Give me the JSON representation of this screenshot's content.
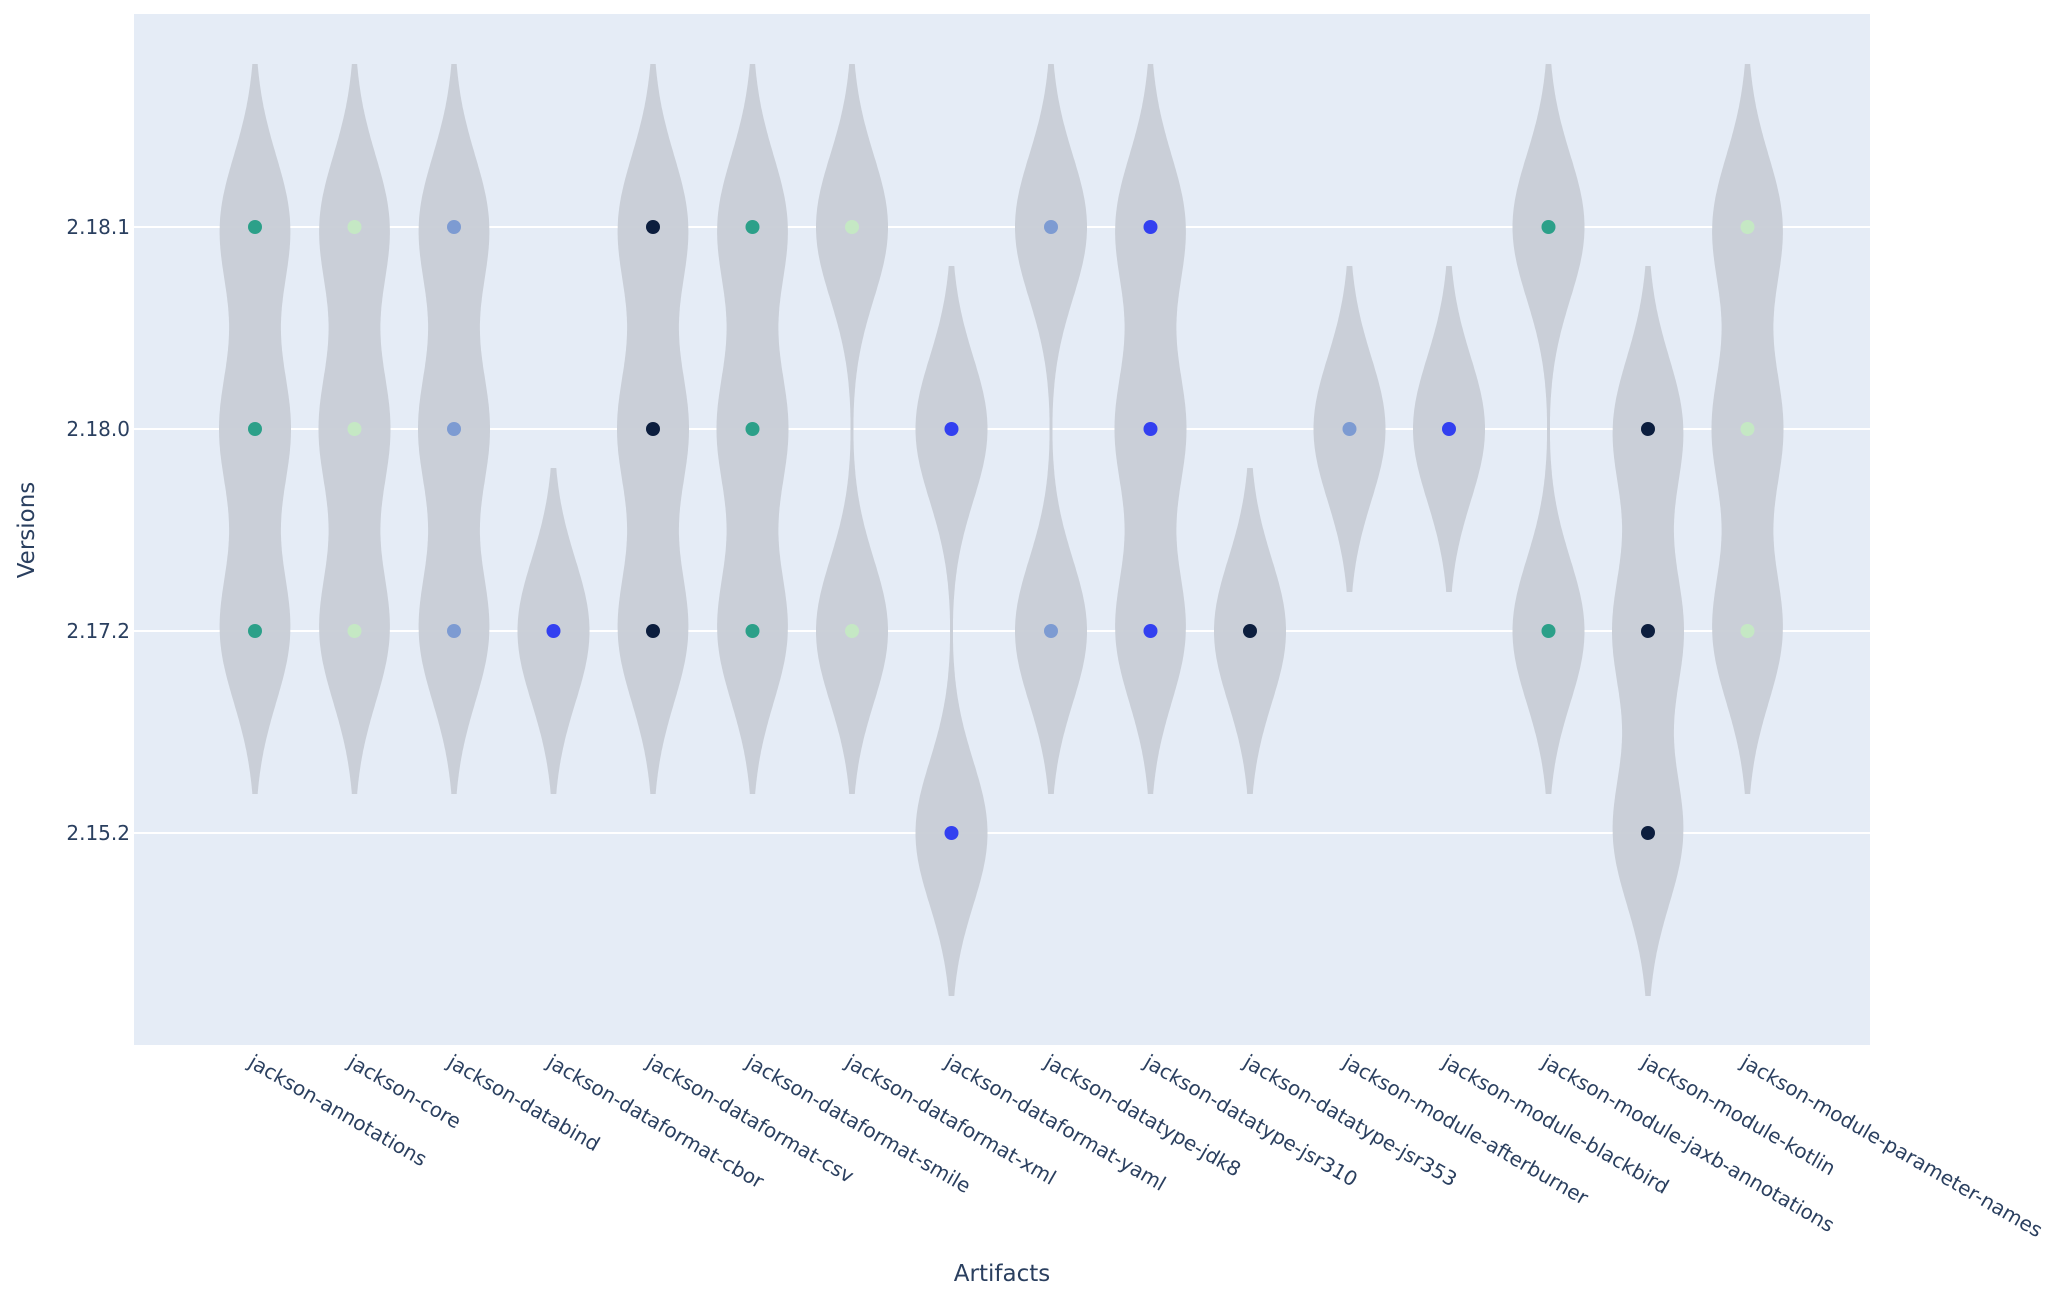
{
  "chart_data": {
    "type": "violin",
    "title": "",
    "xlabel": "Artifacts",
    "ylabel": "Versions",
    "x_axis_type": "category",
    "y_axis_type": "category",
    "y_categories": [
      "2.15.2",
      "2.17.2",
      "2.18.0",
      "2.18.1"
    ],
    "plot_background": "#e5ecf6",
    "grid": true,
    "grid_color": "#ffffff",
    "legend": "none",
    "violin_color": "#c8cdd6",
    "point_palette": [
      "#2ca089",
      "#c5e8c4",
      "#7d9bd2",
      "#3340f0",
      "#0c1e3e"
    ],
    "categories": [
      "jackson-annotations",
      "jackson-core",
      "jackson-databind",
      "jackson-dataformat-cbor",
      "jackson-dataformat-csv",
      "jackson-dataformat-smile",
      "jackson-dataformat-xml",
      "jackson-dataformat-yaml",
      "jackson-datatype-jdk8",
      "jackson-datatype-jsr310",
      "jackson-datatype-jsr353",
      "jackson-module-afterburner",
      "jackson-module-blackbird",
      "jackson-module-jaxb-annotations",
      "jackson-module-kotlin",
      "jackson-module-parameter-names"
    ],
    "series": [
      {
        "artifact": "jackson-annotations",
        "versions": [
          "2.17.2",
          "2.18.0",
          "2.18.1"
        ],
        "color": "#2ca089"
      },
      {
        "artifact": "jackson-core",
        "versions": [
          "2.17.2",
          "2.18.0",
          "2.18.1"
        ],
        "color": "#c5e8c4"
      },
      {
        "artifact": "jackson-databind",
        "versions": [
          "2.17.2",
          "2.18.0",
          "2.18.1"
        ],
        "color": "#7d9bd2"
      },
      {
        "artifact": "jackson-dataformat-cbor",
        "versions": [
          "2.17.2"
        ],
        "color": "#3340f0"
      },
      {
        "artifact": "jackson-dataformat-csv",
        "versions": [
          "2.17.2",
          "2.18.0",
          "2.18.1"
        ],
        "color": "#0c1e3e"
      },
      {
        "artifact": "jackson-dataformat-smile",
        "versions": [
          "2.17.2",
          "2.18.0",
          "2.18.1"
        ],
        "color": "#2ca089"
      },
      {
        "artifact": "jackson-dataformat-xml",
        "versions": [
          "2.17.2",
          "2.18.1"
        ],
        "color": "#c5e8c4"
      },
      {
        "artifact": "jackson-dataformat-yaml",
        "versions": [
          "2.15.2",
          "2.18.0"
        ],
        "color": "#3340f0"
      },
      {
        "artifact": "jackson-datatype-jdk8",
        "versions": [
          "2.17.2",
          "2.18.1"
        ],
        "color": "#7d9bd2"
      },
      {
        "artifact": "jackson-datatype-jsr310",
        "versions": [
          "2.17.2",
          "2.18.0",
          "2.18.1"
        ],
        "color": "#3340f0"
      },
      {
        "artifact": "jackson-datatype-jsr353",
        "versions": [
          "2.17.2"
        ],
        "color": "#0c1e3e"
      },
      {
        "artifact": "jackson-module-afterburner",
        "versions": [
          "2.18.0"
        ],
        "color": "#7d9bd2"
      },
      {
        "artifact": "jackson-module-blackbird",
        "versions": [
          "2.18.0"
        ],
        "color": "#3340f0"
      },
      {
        "artifact": "jackson-module-jaxb-annotations",
        "versions": [
          "2.17.2",
          "2.18.1"
        ],
        "color": "#2ca089"
      },
      {
        "artifact": "jackson-module-kotlin",
        "versions": [
          "2.15.2",
          "2.17.2",
          "2.18.0"
        ],
        "color": "#0c1e3e"
      },
      {
        "artifact": "jackson-module-parameter-names",
        "versions": [
          "2.17.2",
          "2.18.0",
          "2.18.1"
        ],
        "color": "#c5e8c4"
      }
    ]
  }
}
